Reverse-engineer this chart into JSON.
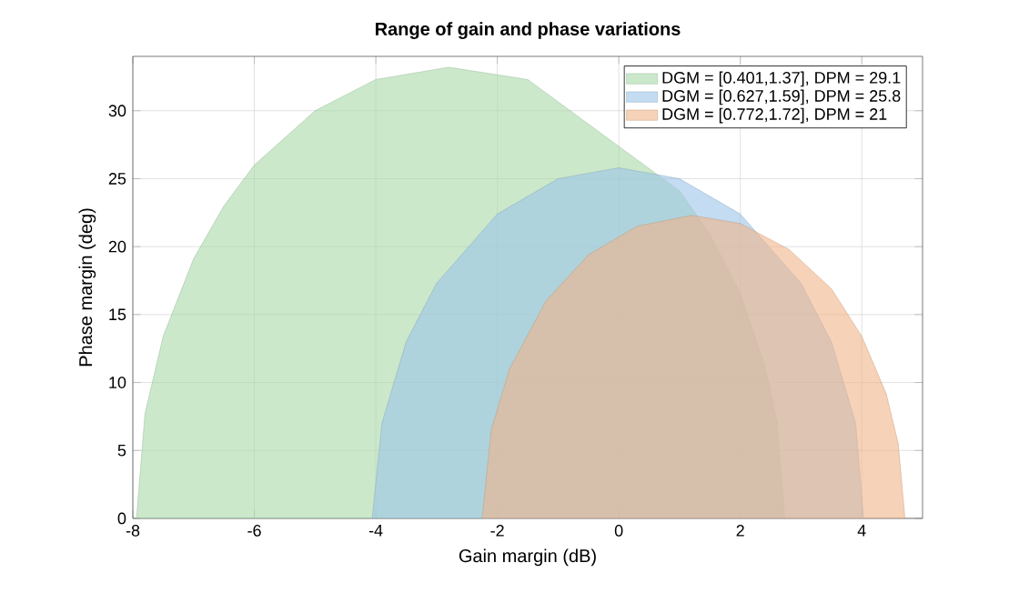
{
  "chart_data": {
    "type": "area",
    "title": "Range of gain and phase variations",
    "xlabel": "Gain margin (dB)",
    "ylabel": "Phase margin (deg)",
    "xlim": [
      -8,
      5
    ],
    "ylim": [
      0,
      34
    ],
    "xticks": [
      -8,
      -6,
      -4,
      -2,
      0,
      2,
      4
    ],
    "yticks": [
      0,
      5,
      10,
      15,
      20,
      25,
      30
    ],
    "grid": true,
    "legend": "top right",
    "series": [
      {
        "name": "DGM = [0.401,1.37], DPM = 29.1",
        "color": "#a9d8a9",
        "x": [
          -7.94,
          -7.8,
          -7.5,
          -7,
          -6.5,
          -6,
          -5,
          -4,
          -2.8,
          -1.5,
          0,
          1,
          1.5,
          2,
          2.4,
          2.6,
          2.73
        ],
        "values": [
          0,
          7.7,
          13.4,
          19.1,
          23.0,
          26.0,
          30.0,
          32.3,
          33.2,
          32.3,
          null,
          24.1,
          20.9,
          16.5,
          11.3,
          7.2,
          0
        ]
      },
      {
        "name": "DGM = [0.627,1.59], DPM = 25.8",
        "color": "#9cc5e8",
        "x": [
          -4.06,
          -3.9,
          -3.5,
          -3,
          -2,
          -1,
          0,
          1,
          2,
          3,
          3.5,
          3.9,
          4.03
        ],
        "values": [
          0,
          7.0,
          13.0,
          17.3,
          22.4,
          25.0,
          25.8,
          25.0,
          22.4,
          17.3,
          13.0,
          7.0,
          0
        ]
      },
      {
        "name": "DGM = [0.772,1.72], DPM = 21",
        "color": "#f0b48a",
        "x": [
          -2.25,
          -2.1,
          -1.8,
          -1.2,
          -0.5,
          0.3,
          1.2,
          2,
          2.8,
          3.5,
          4,
          4.4,
          4.6,
          4.71
        ],
        "values": [
          0,
          6.5,
          11.0,
          16.0,
          19.4,
          21.5,
          22.3,
          21.7,
          19.8,
          16.9,
          13.4,
          9.2,
          5.5,
          0
        ]
      }
    ]
  }
}
